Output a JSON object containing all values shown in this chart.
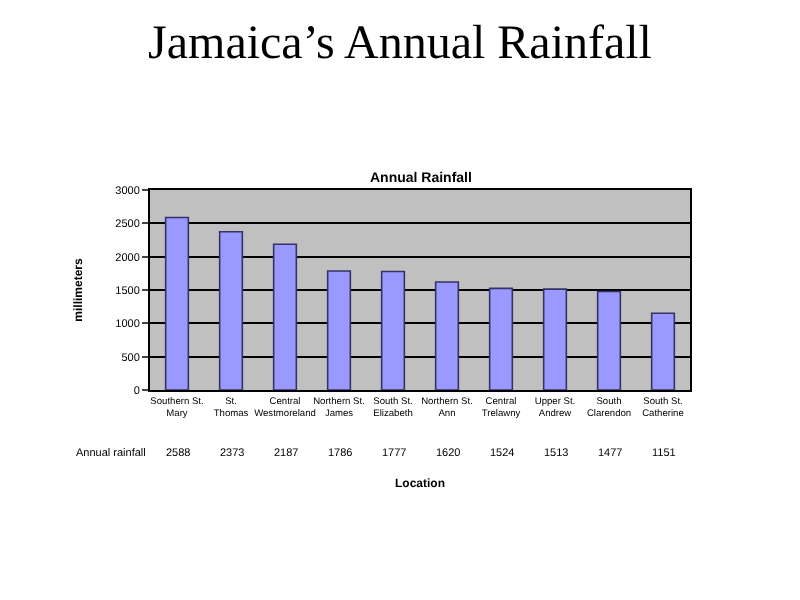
{
  "chart_data": {
    "type": "bar",
    "title": "Jamaica’s Annual Rainfall",
    "subtitle": "Annual Rainfall",
    "xlabel": "Location",
    "ylabel": "millimeters",
    "categories": [
      "Southern St. Mary",
      "St. Thomas",
      "Central Westmoreland",
      "Northern St. James",
      "South St. Elizabeth",
      "Northern St. Ann",
      "Central Trelawny",
      "Upper St. Andrew",
      "South Clarendon",
      "South St. Catherine"
    ],
    "series": [
      {
        "name": "Annual rainfall",
        "color": "#9999ff",
        "values": [
          2588,
          2373,
          2187,
          1786,
          1777,
          1620,
          1524,
          1513,
          1477,
          1151
        ]
      }
    ],
    "ylim": [
      0,
      3000
    ],
    "yticks": [
      0,
      500,
      1000,
      1500,
      2000,
      2500,
      3000
    ],
    "grid": "y",
    "data_labels": true
  }
}
